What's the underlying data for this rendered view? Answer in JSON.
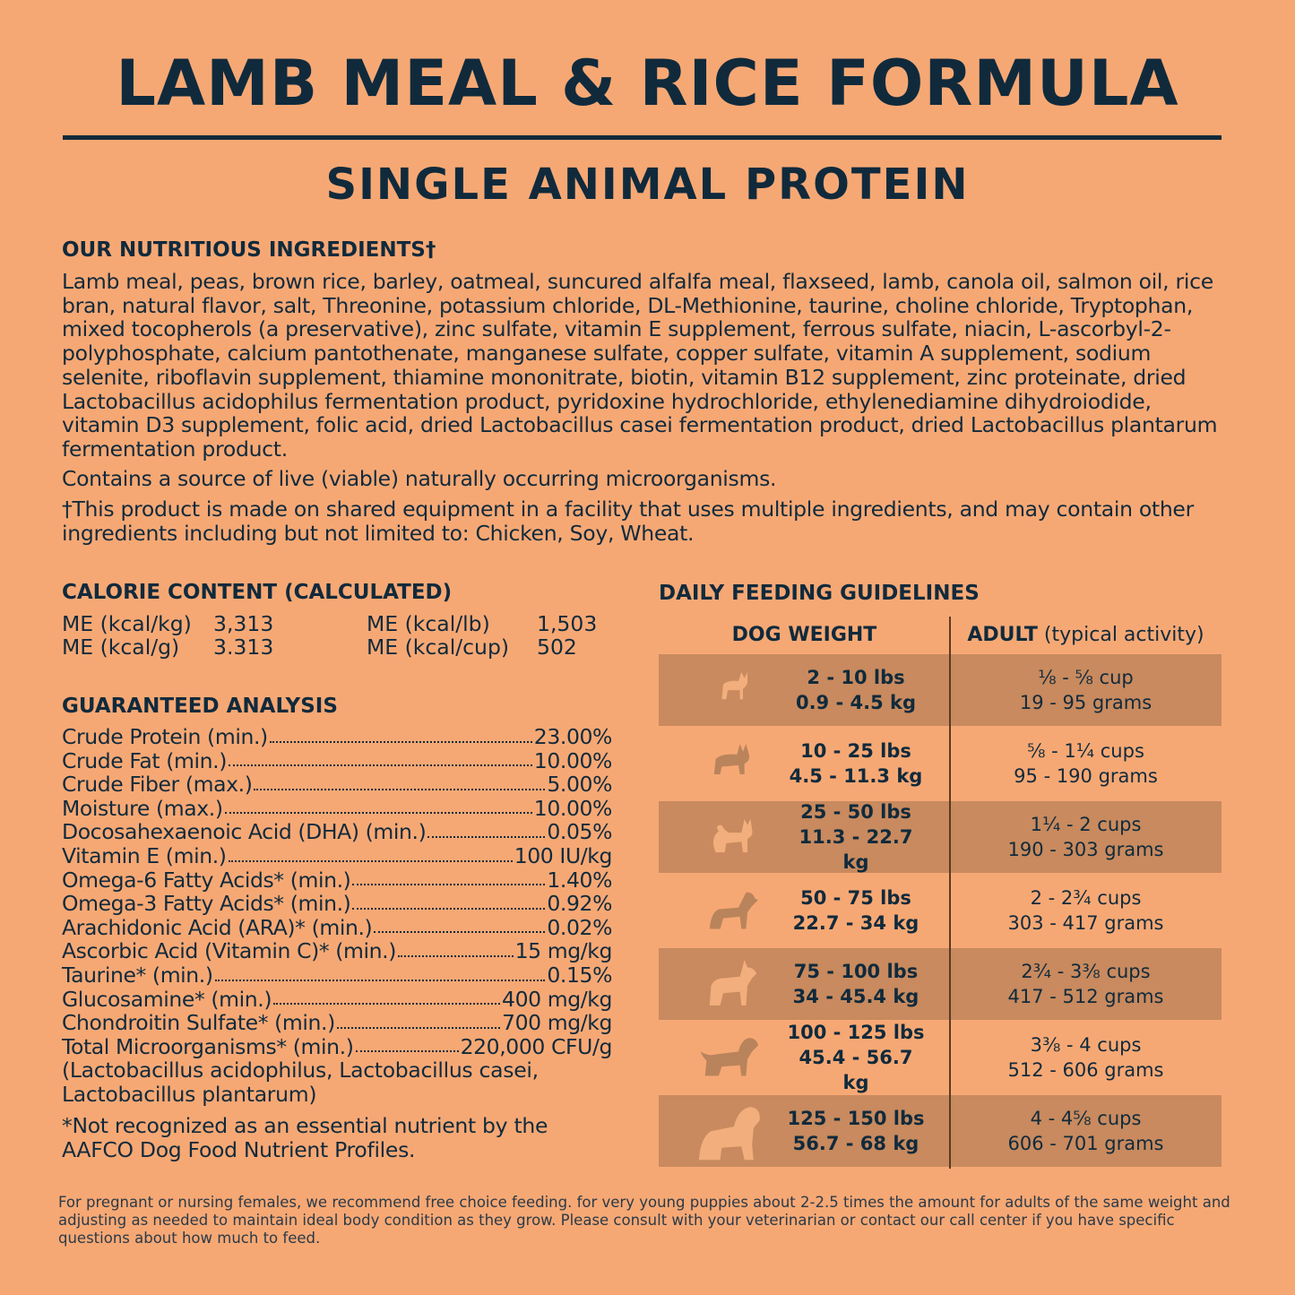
{
  "title": "LAMB MEAL & RICE FORMULA",
  "subtitle": "SINGLE ANIMAL PROTEIN",
  "ingredients": {
    "heading": "OUR NUTRITIOUS INGREDIENTS†",
    "text": "Lamb meal, peas, brown rice, barley, oatmeal, suncured alfalfa meal, flaxseed, lamb, canola oil, salmon oil, rice bran, natural flavor, salt, Threonine, potassium chloride, DL-Methionine, taurine, choline chloride, Tryptophan, mixed tocopherols (a preservative), zinc sulfate, vitamin E supplement, ferrous sulfate, niacin, L-ascorbyl-2-polyphosphate, calcium pantothenate, manganese sulfate, copper sulfate, vitamin A supplement, sodium selenite, riboflavin supplement, thiamine mononitrate, biotin, vitamin B12 supplement, zinc proteinate, dried Lactobacillus acidophilus fermentation product, pyridoxine hydrochloride, ethylenediamine dihydroiodide, vitamin D3 supplement, folic acid, dried Lactobacillus casei fermentation product, dried Lactobacillus plantarum fermentation product.",
    "live": "Contains a source of live (viable) naturally occurring microorganisms.",
    "dagger": "†This product is made on shared equipment in a facility that uses multiple ingredients, and may contain other ingredients including but not limited to: Chicken, Soy, Wheat."
  },
  "calorie": {
    "heading": "CALORIE CONTENT (CALCULATED)",
    "items": [
      {
        "label": "ME (kcal/kg)",
        "value": "3,313"
      },
      {
        "label": "ME (kcal/lb)",
        "value": "1,503"
      },
      {
        "label": "ME (kcal/g)",
        "value": "3.313"
      },
      {
        "label": "ME (kcal/cup)",
        "value": "502"
      }
    ]
  },
  "analysis": {
    "heading": "GUARANTEED ANALYSIS",
    "rows": [
      {
        "label": "Crude Protein (min.)",
        "value": "23.00%"
      },
      {
        "label": "Crude Fat (min.)",
        "value": "10.00%"
      },
      {
        "label": "Crude Fiber (max.)",
        "value": "5.00%"
      },
      {
        "label": "Moisture (max.)",
        "value": "10.00%"
      },
      {
        "label": "Docosahexaenoic Acid (DHA) (min.)",
        "value": "0.05%"
      },
      {
        "label": "Vitamin E (min.)",
        "value": "100 IU/kg"
      },
      {
        "label": "Omega-6 Fatty Acids* (min.)",
        "value": "1.40%"
      },
      {
        "label": "Omega-3 Fatty Acids* (min.)",
        "value": "0.92%"
      },
      {
        "label": "Arachidonic Acid (ARA)* (min.)",
        "value": "0.02%"
      },
      {
        "label": "Ascorbic Acid (Vitamin C)* (min.)",
        "value": "15 mg/kg"
      },
      {
        "label": "Taurine* (min.)",
        "value": "0.15%"
      },
      {
        "label": "Glucosamine* (min.)",
        "value": "400 mg/kg"
      },
      {
        "label": "Chondroitin Sulfate* (min.)",
        "value": "700 mg/kg"
      },
      {
        "label": "Total Microorganisms* (min.)",
        "value": "220,000 CFU/g"
      }
    ],
    "sub": "(Lactobacillus acidophilus, Lactobacillus casei, Lactobacillus plantarum)",
    "note": "*Not recognized as an essential nutrient by the AAFCO Dog Food Nutrient Profiles."
  },
  "feeding": {
    "heading": "DAILY FEEDING GUIDELINES",
    "col1": "DOG WEIGHT",
    "col2_bold": "ADULT",
    "col2_rest": " (typical activity)",
    "rows": [
      {
        "lbs": "2 - 10 lbs",
        "kg": "0.9 - 4.5 kg",
        "cups": "⅛ - ⅝ cup",
        "grams": "19 - 95 grams",
        "icon": "chihuahua-icon"
      },
      {
        "lbs": "10 - 25 lbs",
        "kg": "4.5 - 11.3 kg",
        "cups": "⅝ - 1¼ cups",
        "grams": "95 - 190 grams",
        "icon": "french-bulldog-icon"
      },
      {
        "lbs": "25 - 50 lbs",
        "kg": "11.3 - 22.7 kg",
        "cups": "1¼ - 2 cups",
        "grams": "190 - 303 grams",
        "icon": "spitz-dog-icon"
      },
      {
        "lbs": "50 - 75 lbs",
        "kg": "22.7 - 34 kg",
        "cups": "2 - 2¾ cups",
        "grams": "303 - 417 grams",
        "icon": "medium-dog-icon"
      },
      {
        "lbs": "75 - 100 lbs",
        "kg": "34 - 45.4 kg",
        "cups": "2¾ - 3⅜ cups",
        "grams": "417 - 512 grams",
        "icon": "great-dane-icon"
      },
      {
        "lbs": "100 - 125 lbs",
        "kg": "45.4 - 56.7 kg",
        "cups": "3⅜ - 4 cups",
        "grams": "512 - 606 grams",
        "icon": "large-dog-icon"
      },
      {
        "lbs": "125 - 150 lbs",
        "kg": "56.7 - 68 kg",
        "cups": "4 - 4⅝ cups",
        "grams": "606 - 701 grams",
        "icon": "giant-dog-icon"
      }
    ]
  },
  "footer": "For pregnant or nursing females, we recommend free choice feeding. for very young puppies about 2-2.5 times the amount for adults of the same weight and adjusting as needed to maintain ideal body condition as they grow. Please consult with your veterinarian or contact our call center if you have specific questions about how much to feed.",
  "colors": {
    "background": "#F6A874",
    "dark_row": "#C88A5E",
    "text": "#102a3c"
  }
}
